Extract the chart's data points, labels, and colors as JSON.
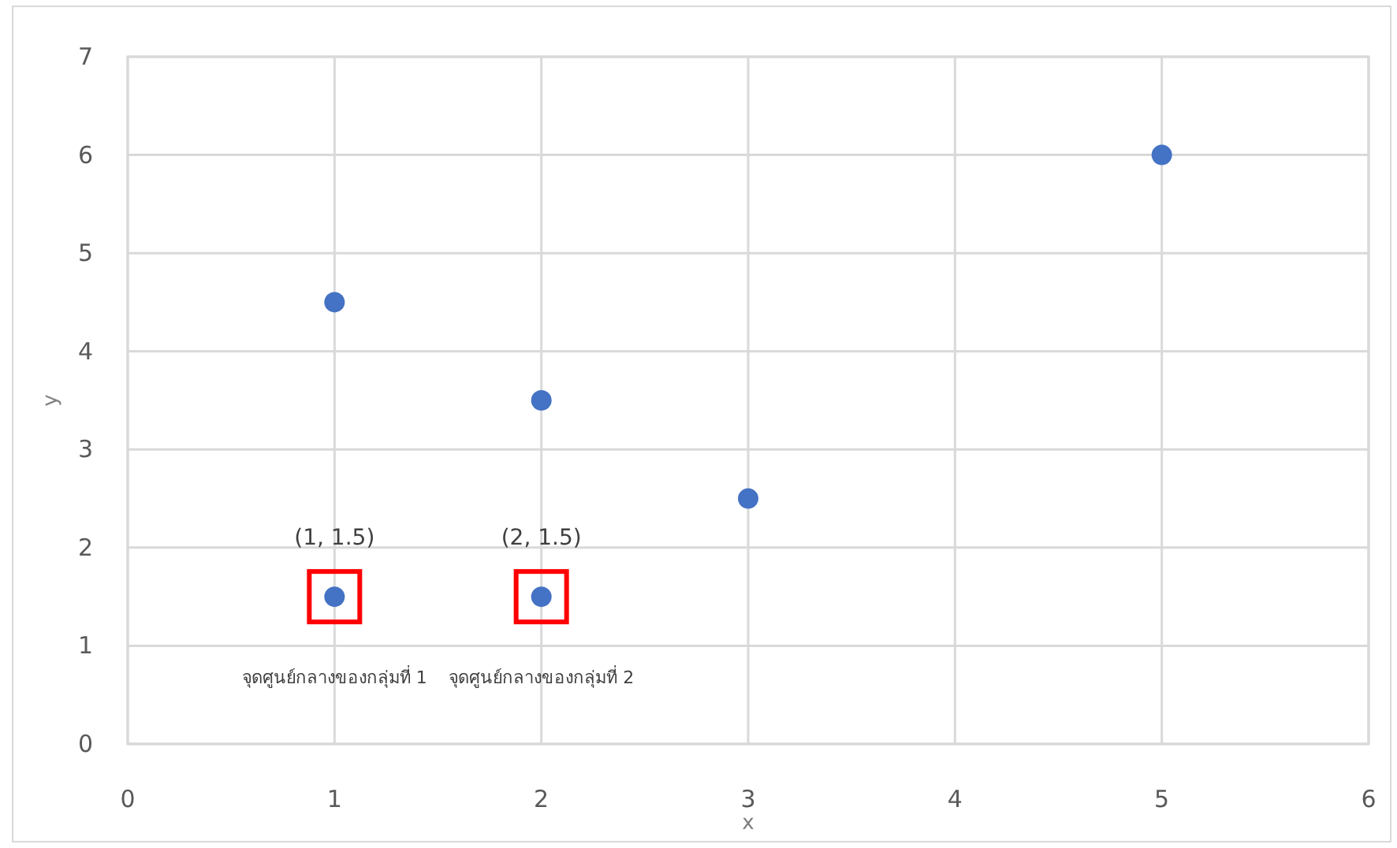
{
  "chart_data": {
    "type": "scatter",
    "xlabel": "x",
    "ylabel": "y",
    "series": [
      {
        "color": "#4472c4",
        "x": [
          1,
          2,
          3,
          5
        ],
        "values": [
          4.5,
          3.5,
          2.5,
          6
        ]
      },
      {
        "color": "#4472c4",
        "x": [
          1,
          2
        ],
        "values": [
          1.5,
          1.5
        ]
      }
    ],
    "xlim": [
      0,
      6
    ],
    "xticks": [
      0,
      1,
      2,
      3,
      4,
      5,
      6
    ],
    "ylim": [
      0,
      7
    ],
    "yticks": [
      0,
      1,
      2,
      3,
      4,
      5,
      6,
      7
    ],
    "grid": true,
    "marker": "circle",
    "annotations": [
      "(1, 1.5)",
      "จุดศูนย์กลางของกลุ่มที่ 1",
      "(2, 1.5)",
      "จุดศูนย์กลางของกลุ่มที่ 2"
    ]
  }
}
